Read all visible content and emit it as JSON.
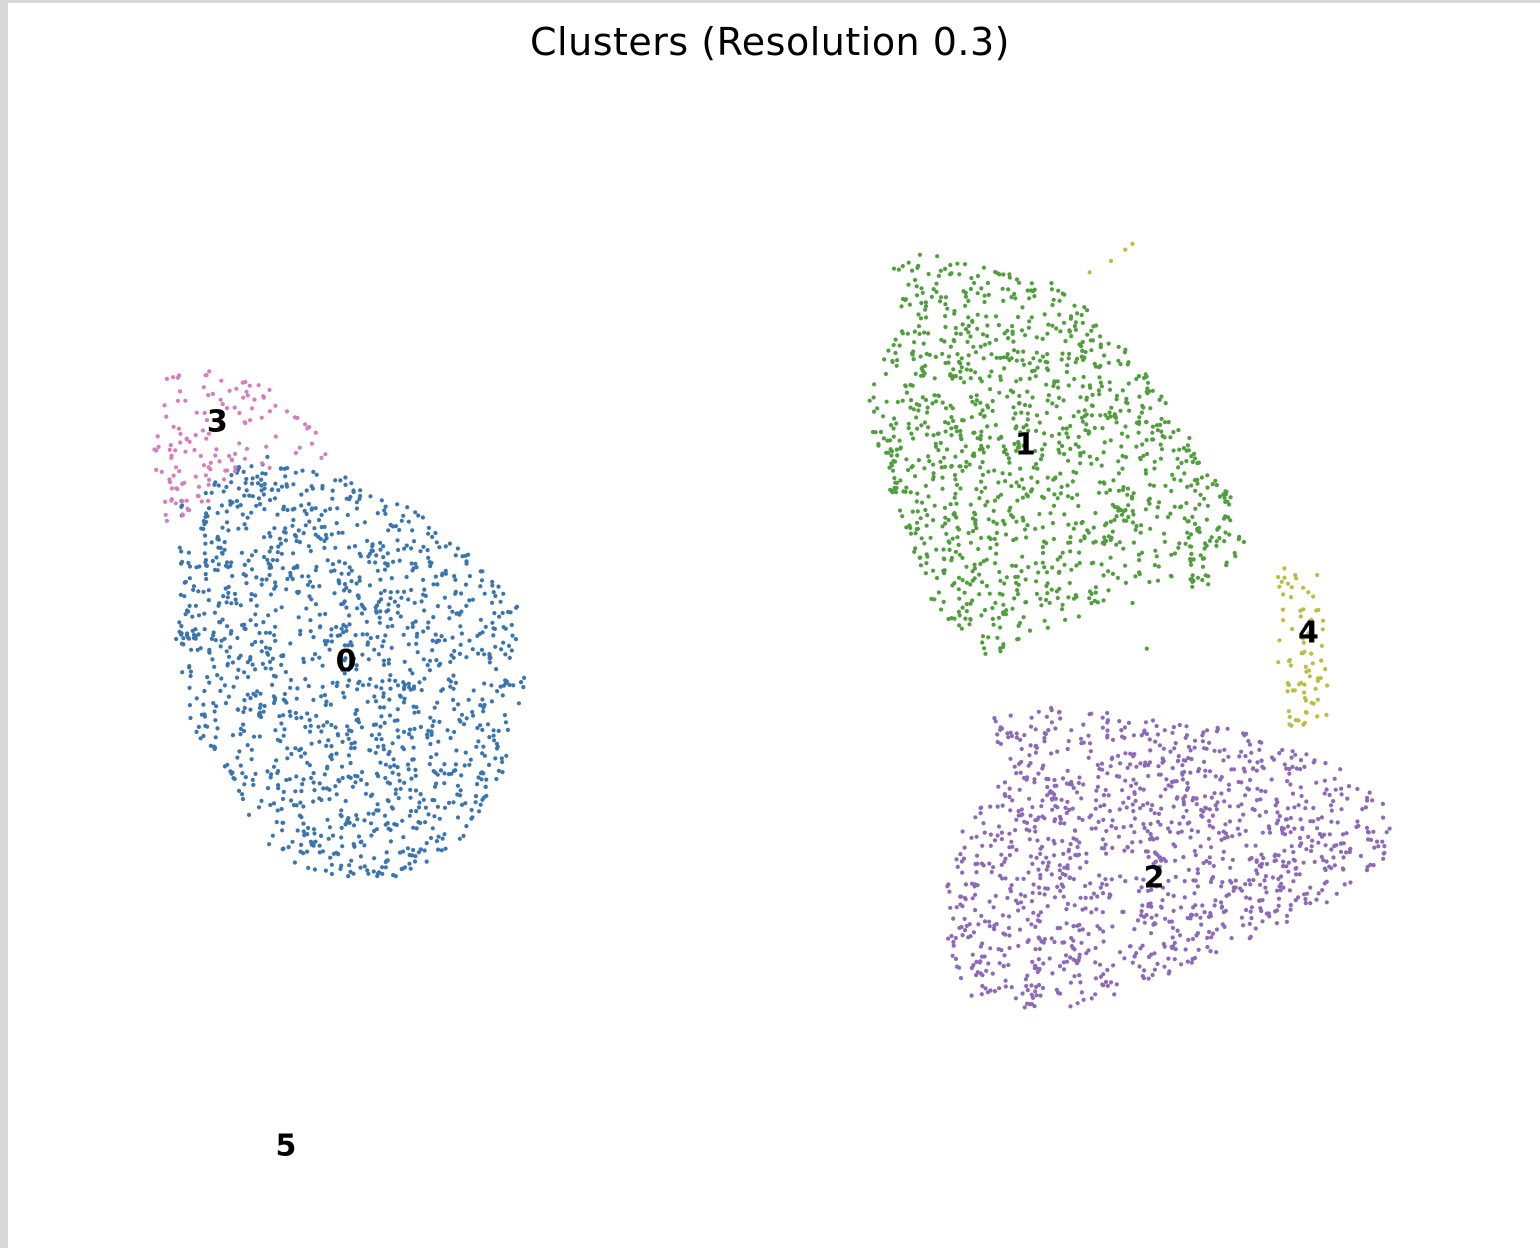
{
  "chart_data": {
    "type": "scatter",
    "title": "Clusters (Resolution 0.3)",
    "xlabel": "",
    "ylabel": "",
    "xlim": [
      0,
      100
    ],
    "ylim": [
      0,
      100
    ],
    "axes_visible": false,
    "grid": false,
    "legend": "on data",
    "point_size": "small",
    "clusters": [
      {
        "label": "0",
        "color": "#3b75af",
        "n_points": 1400,
        "center": [
          20,
          50
        ],
        "label_pos": [
          20,
          50
        ],
        "shape": [
          [
            8,
            64
          ],
          [
            14,
            68
          ],
          [
            20,
            66
          ],
          [
            24,
            64
          ],
          [
            28,
            60
          ],
          [
            32,
            56
          ],
          [
            32.5,
            48
          ],
          [
            31,
            40
          ],
          [
            28,
            34
          ],
          [
            24,
            31
          ],
          [
            18,
            31
          ],
          [
            14,
            34
          ],
          [
            12,
            40
          ],
          [
            9,
            44
          ],
          [
            8,
            52
          ],
          [
            8.5,
            58
          ]
        ]
      },
      {
        "label": "1",
        "color": "#519e3e",
        "n_points": 1250,
        "center": [
          67.5,
          69
        ],
        "label_pos": [
          67.5,
          69
        ],
        "shape": [
          [
            58,
            85
          ],
          [
            61,
            86
          ],
          [
            66,
            84
          ],
          [
            70,
            83
          ],
          [
            74,
            78
          ],
          [
            78,
            72
          ],
          [
            82,
            64
          ],
          [
            83,
            60
          ],
          [
            80,
            56
          ],
          [
            75,
            57
          ],
          [
            72,
            54
          ],
          [
            68,
            52
          ],
          [
            65,
            50
          ],
          [
            61,
            55
          ],
          [
            59,
            62
          ],
          [
            57,
            68
          ],
          [
            56.5,
            74
          ],
          [
            59,
            80
          ]
        ]
      },
      {
        "label": "2",
        "color": "#8d69b8",
        "n_points": 1250,
        "center": [
          76.5,
          31
        ],
        "label_pos": [
          76.5,
          31
        ],
        "shape": [
          [
            65,
            45
          ],
          [
            70,
            46
          ],
          [
            76,
            45
          ],
          [
            82,
            44
          ],
          [
            89,
            41
          ],
          [
            93,
            37
          ],
          [
            93,
            33
          ],
          [
            88,
            28
          ],
          [
            82,
            25
          ],
          [
            75,
            21
          ],
          [
            69,
            19
          ],
          [
            64,
            20
          ],
          [
            62,
            24
          ],
          [
            62,
            30
          ],
          [
            63,
            35
          ],
          [
            66,
            40
          ]
        ]
      },
      {
        "label": "3",
        "color": "#d57dbe",
        "n_points": 140,
        "center": [
          11,
          71
        ],
        "label_pos": [
          11,
          71
        ],
        "shape": [
          [
            7.5,
            75
          ],
          [
            11,
            75.5
          ],
          [
            15,
            74.5
          ],
          [
            17,
            71
          ],
          [
            20,
            68
          ],
          [
            16,
            67
          ],
          [
            12,
            66
          ],
          [
            10,
            63
          ],
          [
            7.5,
            62
          ],
          [
            6.5,
            68
          ]
        ]
      },
      {
        "label": "4",
        "color": "#bcbc45",
        "n_points": 80,
        "center": [
          87.3,
          52.5
        ],
        "label_pos": [
          87.3,
          52.5
        ],
        "shape": [
          [
            85,
            58.5
          ],
          [
            88,
            58
          ],
          [
            88.5,
            52
          ],
          [
            89,
            44.5
          ],
          [
            86,
            44
          ],
          [
            85,
            50
          ],
          [
            85.5,
            54
          ]
        ]
      },
      {
        "label": "5",
        "color": "#aaaaaa",
        "n_points": 0,
        "center": [
          15.8,
          7.5
        ],
        "label_pos": [
          15.8,
          7.5
        ],
        "shape": []
      }
    ],
    "stray_points": [
      {
        "cluster": "4",
        "pts": [
          [
            72,
            84
          ],
          [
            73.5,
            85
          ],
          [
            74.5,
            86
          ],
          [
            75,
            86.5
          ]
        ]
      },
      {
        "cluster": "1",
        "pts": [
          [
            75,
            55
          ],
          [
            76,
            51
          ]
        ]
      }
    ]
  }
}
